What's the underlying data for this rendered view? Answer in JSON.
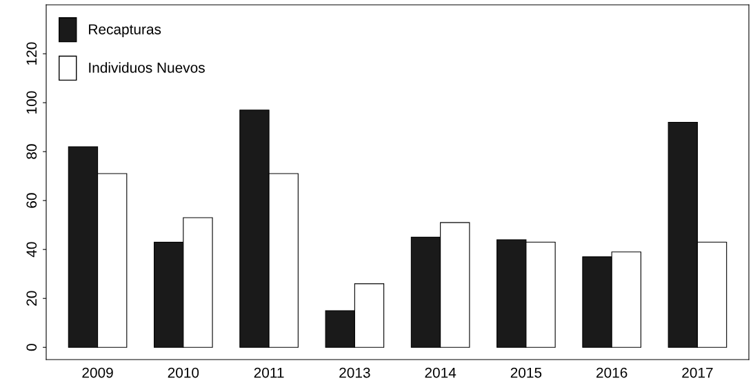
{
  "chart_data": {
    "type": "bar",
    "categories": [
      "2009",
      "2010",
      "2011",
      "2013",
      "2014",
      "2015",
      "2016",
      "2017"
    ],
    "series": [
      {
        "name": "Recapturas",
        "color": "#1a1a1a",
        "values": [
          82,
          43,
          97,
          15,
          45,
          44,
          37,
          92
        ]
      },
      {
        "name": "Individuos Nuevos",
        "color": "#ffffff",
        "values": [
          71,
          53,
          71,
          26,
          51,
          43,
          39,
          43
        ]
      }
    ],
    "ylim": [
      -5,
      140
    ],
    "yticks": [
      0,
      20,
      40,
      60,
      80,
      100,
      120
    ],
    "grid": false,
    "legend": "top left"
  }
}
